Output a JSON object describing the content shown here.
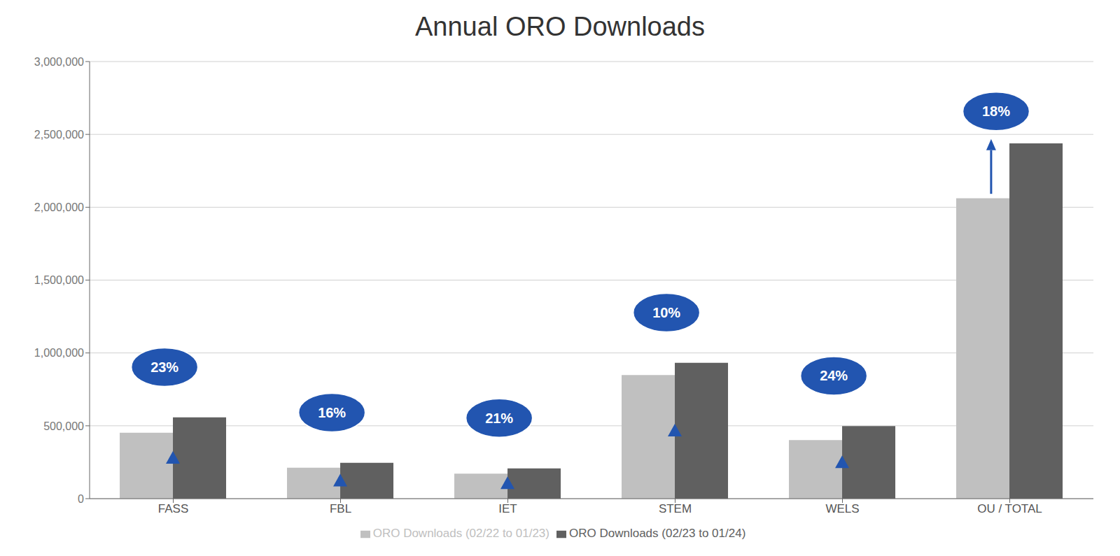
{
  "chart_data": {
    "type": "bar",
    "title": "Annual ORO Downloads",
    "categories": [
      "FASS",
      "FBL",
      "IET",
      "STEM",
      "WELS",
      "OU / TOTAL"
    ],
    "series": [
      {
        "name": "ORO Downloads (02/22 to 01/23)",
        "color": "#c0c0c0",
        "values": [
          452000,
          212000,
          172000,
          848000,
          402000,
          2062000
        ]
      },
      {
        "name": "ORO Downloads (02/23 to 01/24)",
        "color": "#606060",
        "values": [
          558000,
          246000,
          208000,
          932000,
          498000,
          2438000
        ]
      }
    ],
    "annotations": [
      {
        "text": "23%",
        "color": "#2255b0"
      },
      {
        "text": "16%",
        "color": "#2255b0"
      },
      {
        "text": "21%",
        "color": "#2255b0"
      },
      {
        "text": "10%",
        "color": "#2255b0"
      },
      {
        "text": "24%",
        "color": "#2255b0"
      },
      {
        "text": "18%",
        "color": "#2255b0"
      }
    ],
    "ylim": [
      0,
      3000000
    ],
    "yticks": [
      0,
      {
        "value": 500000,
        "label": "500,000"
      },
      {
        "value": 1000000,
        "label": "1,000,000"
      },
      {
        "value": 1500000,
        "label": "1,500,000"
      },
      {
        "value": 2000000,
        "label": "2,000,000"
      },
      {
        "value": 2500000,
        "label": "2,500,000"
      },
      {
        "value": 3000000,
        "label": "3,000,000"
      }
    ],
    "grid": true,
    "legend": "bottom"
  }
}
